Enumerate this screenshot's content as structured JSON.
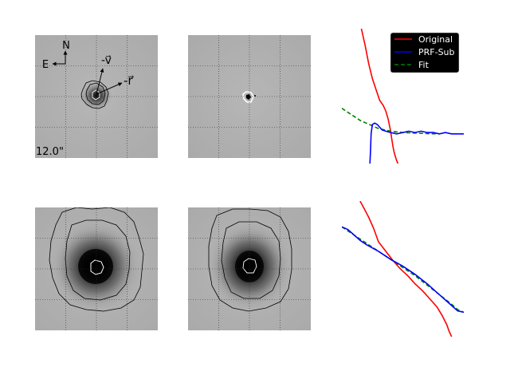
{
  "figure": {
    "scale_label": "12.0\"",
    "compass": {
      "north": "N",
      "east": "E"
    },
    "vector_labels": {
      "velocity": "-v⃗",
      "radius": "-r⃗"
    },
    "colors": {
      "original": "#ff0000",
      "prf_sub": "#0000ff",
      "fit": "#008000",
      "legend_bg": "#000000",
      "legend_text": "#ffffff"
    },
    "panels": [
      {
        "row": 1,
        "kind": "image",
        "content": "comet image with contours"
      },
      {
        "row": 1,
        "kind": "image",
        "content": "PRF-subtracted residual"
      },
      {
        "row": 1,
        "kind": "profile"
      },
      {
        "row": 2,
        "kind": "image",
        "content": "comet image with contours"
      },
      {
        "row": 2,
        "kind": "image",
        "content": "PRF-subtracted residual with contours"
      },
      {
        "row": 2,
        "kind": "profile"
      }
    ]
  },
  "chart_data": [
    {
      "type": "line",
      "title": "",
      "xlabel": "",
      "ylabel": "",
      "axes_visible": false,
      "xlim": [
        0,
        1
      ],
      "ylim": [
        0,
        1
      ],
      "legend": {
        "placement": "top-right",
        "entries": [
          "Original",
          "PRF-Sub",
          "Fit"
        ]
      },
      "series": [
        {
          "name": "Original",
          "style": "solid",
          "x": [
            0.16,
            0.19,
            0.22,
            0.25,
            0.28,
            0.31,
            0.34,
            0.36,
            0.38,
            0.4,
            0.41,
            0.42,
            0.43,
            0.44,
            0.45,
            0.46
          ],
          "y": [
            1.0,
            0.88,
            0.74,
            0.63,
            0.55,
            0.47,
            0.43,
            0.39,
            0.33,
            0.24,
            0.18,
            0.12,
            0.08,
            0.05,
            0.02,
            0.0
          ]
        },
        {
          "name": "PRF-Sub",
          "style": "solid",
          "x": [
            0.23,
            0.235,
            0.24,
            0.25,
            0.27,
            0.29,
            0.31,
            0.33,
            0.36,
            0.4,
            0.45,
            0.5,
            0.55,
            0.6,
            0.65,
            0.7,
            0.75,
            0.8,
            0.85,
            0.9,
            0.95,
            1.0
          ],
          "y": [
            0.0,
            0.1,
            0.22,
            0.29,
            0.3,
            0.29,
            0.27,
            0.25,
            0.24,
            0.23,
            0.22,
            0.23,
            0.24,
            0.23,
            0.24,
            0.23,
            0.23,
            0.22,
            0.23,
            0.22,
            0.22,
            0.22
          ]
        },
        {
          "name": "Fit",
          "style": "dashed",
          "x": [
            0.0,
            0.05,
            0.1,
            0.15,
            0.2,
            0.25,
            0.3,
            0.35,
            0.4,
            0.45,
            0.5,
            0.55,
            0.6,
            0.65,
            0.7,
            0.75,
            0.8
          ],
          "y": [
            0.41,
            0.38,
            0.35,
            0.32,
            0.3,
            0.28,
            0.26,
            0.25,
            0.24,
            0.235,
            0.23,
            0.228,
            0.226,
            0.224,
            0.222,
            0.221,
            0.22
          ]
        }
      ]
    },
    {
      "type": "line",
      "title": "",
      "xlabel": "",
      "ylabel": "",
      "axes_visible": false,
      "xlim": [
        0,
        1
      ],
      "ylim": [
        0,
        1
      ],
      "series": [
        {
          "name": "Original",
          "style": "solid",
          "x": [
            0.15,
            0.18,
            0.22,
            0.26,
            0.3,
            0.36,
            0.42,
            0.48,
            0.54,
            0.6,
            0.66,
            0.72,
            0.78,
            0.82,
            0.86,
            0.88,
            0.9
          ],
          "y": [
            1.0,
            0.95,
            0.88,
            0.8,
            0.7,
            0.63,
            0.56,
            0.5,
            0.45,
            0.39,
            0.34,
            0.28,
            0.22,
            0.16,
            0.09,
            0.04,
            0.0
          ]
        },
        {
          "name": "PRF-Sub",
          "style": "solid",
          "x": [
            0.0,
            0.05,
            0.1,
            0.15,
            0.2,
            0.3,
            0.4,
            0.5,
            0.6,
            0.7,
            0.8,
            0.9,
            0.95,
            1.0
          ],
          "y": [
            0.81,
            0.79,
            0.75,
            0.71,
            0.68,
            0.63,
            0.57,
            0.52,
            0.46,
            0.39,
            0.31,
            0.23,
            0.19,
            0.18
          ]
        },
        {
          "name": "Fit",
          "style": "dashed",
          "x": [
            0.0,
            0.05,
            0.1,
            0.15,
            0.2,
            0.3,
            0.4,
            0.5,
            0.6,
            0.7,
            0.8,
            0.9,
            0.95,
            1.0
          ],
          "y": [
            0.81,
            0.78,
            0.75,
            0.72,
            0.69,
            0.63,
            0.57,
            0.51,
            0.45,
            0.38,
            0.31,
            0.24,
            0.2,
            0.18
          ]
        }
      ]
    }
  ]
}
